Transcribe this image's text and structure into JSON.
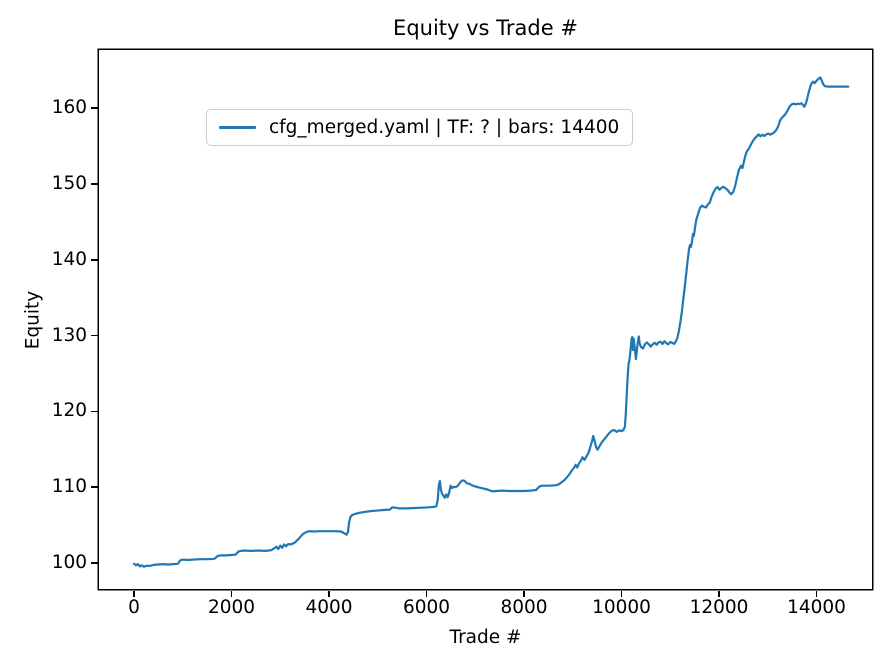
{
  "chart_data": {
    "type": "line",
    "title": "Equity vs Trade #",
    "xlabel": "Trade #",
    "ylabel": "Equity",
    "xlim": [
      -718,
      15138
    ],
    "ylim": [
      96.57,
      167.68
    ],
    "xticks": [
      0,
      2000,
      4000,
      6000,
      8000,
      10000,
      12000,
      14000
    ],
    "yticks": [
      100,
      110,
      120,
      130,
      140,
      150,
      160
    ],
    "grid": false,
    "background_color": "#ffffff",
    "axis_color": "#000000",
    "legend": {
      "position": "upper-left",
      "entries": [
        {
          "label": "cfg_merged.yaml | TF: ? | bars: 14400",
          "color": "#1f77b4"
        }
      ]
    },
    "series": [
      {
        "name": "cfg_merged.yaml | TF: ? | bars: 14400",
        "color": "#1f77b4",
        "points": [
          [
            0,
            99.9
          ],
          [
            40,
            99.7
          ],
          [
            80,
            99.85
          ],
          [
            120,
            99.55
          ],
          [
            160,
            99.7
          ],
          [
            200,
            99.5
          ],
          [
            260,
            99.65
          ],
          [
            320,
            99.6
          ],
          [
            400,
            99.75
          ],
          [
            500,
            99.8
          ],
          [
            600,
            99.85
          ],
          [
            700,
            99.8
          ],
          [
            800,
            99.85
          ],
          [
            900,
            99.9
          ],
          [
            950,
            100.35
          ],
          [
            1020,
            100.45
          ],
          [
            1100,
            100.4
          ],
          [
            1200,
            100.45
          ],
          [
            1350,
            100.5
          ],
          [
            1500,
            100.5
          ],
          [
            1650,
            100.55
          ],
          [
            1720,
            100.95
          ],
          [
            1800,
            101.0
          ],
          [
            1900,
            101.0
          ],
          [
            2000,
            101.05
          ],
          [
            2080,
            101.1
          ],
          [
            2150,
            101.55
          ],
          [
            2250,
            101.65
          ],
          [
            2400,
            101.6
          ],
          [
            2550,
            101.65
          ],
          [
            2700,
            101.6
          ],
          [
            2820,
            101.7
          ],
          [
            2880,
            101.95
          ],
          [
            2920,
            102.15
          ],
          [
            2960,
            101.85
          ],
          [
            3000,
            102.3
          ],
          [
            3040,
            102.0
          ],
          [
            3080,
            102.45
          ],
          [
            3120,
            102.2
          ],
          [
            3160,
            102.5
          ],
          [
            3220,
            102.45
          ],
          [
            3300,
            102.7
          ],
          [
            3380,
            103.2
          ],
          [
            3460,
            103.8
          ],
          [
            3540,
            104.1
          ],
          [
            3600,
            104.2
          ],
          [
            3700,
            104.15
          ],
          [
            3800,
            104.2
          ],
          [
            3950,
            104.2
          ],
          [
            4100,
            104.2
          ],
          [
            4250,
            104.15
          ],
          [
            4330,
            103.85
          ],
          [
            4360,
            103.75
          ],
          [
            4390,
            104.1
          ],
          [
            4410,
            105.3
          ],
          [
            4440,
            106.1
          ],
          [
            4480,
            106.35
          ],
          [
            4550,
            106.5
          ],
          [
            4650,
            106.65
          ],
          [
            4750,
            106.75
          ],
          [
            4850,
            106.85
          ],
          [
            4950,
            106.9
          ],
          [
            5050,
            106.95
          ],
          [
            5150,
            107.0
          ],
          [
            5250,
            107.05
          ],
          [
            5300,
            107.35
          ],
          [
            5360,
            107.3
          ],
          [
            5450,
            107.2
          ],
          [
            5600,
            107.2
          ],
          [
            5750,
            107.25
          ],
          [
            5900,
            107.3
          ],
          [
            6050,
            107.35
          ],
          [
            6150,
            107.4
          ],
          [
            6200,
            107.5
          ],
          [
            6230,
            108.3
          ],
          [
            6255,
            110.3
          ],
          [
            6275,
            110.8
          ],
          [
            6295,
            109.7
          ],
          [
            6315,
            109.2
          ],
          [
            6345,
            108.9
          ],
          [
            6375,
            108.6
          ],
          [
            6405,
            109.05
          ],
          [
            6435,
            108.7
          ],
          [
            6465,
            109.3
          ],
          [
            6495,
            110.2
          ],
          [
            6525,
            109.9
          ],
          [
            6560,
            110.05
          ],
          [
            6600,
            110.0
          ],
          [
            6650,
            110.25
          ],
          [
            6700,
            110.7
          ],
          [
            6740,
            110.9
          ],
          [
            6780,
            110.85
          ],
          [
            6830,
            110.5
          ],
          [
            6880,
            110.45
          ],
          [
            6950,
            110.2
          ],
          [
            7050,
            110.0
          ],
          [
            7150,
            109.85
          ],
          [
            7250,
            109.7
          ],
          [
            7350,
            109.45
          ],
          [
            7450,
            109.5
          ],
          [
            7550,
            109.55
          ],
          [
            7700,
            109.5
          ],
          [
            7850,
            109.5
          ],
          [
            8000,
            109.5
          ],
          [
            8150,
            109.55
          ],
          [
            8250,
            109.65
          ],
          [
            8310,
            110.05
          ],
          [
            8360,
            110.2
          ],
          [
            8500,
            110.2
          ],
          [
            8650,
            110.25
          ],
          [
            8720,
            110.4
          ],
          [
            8780,
            110.7
          ],
          [
            8830,
            110.95
          ],
          [
            8880,
            111.3
          ],
          [
            8930,
            111.7
          ],
          [
            8980,
            112.2
          ],
          [
            9030,
            112.6
          ],
          [
            9060,
            112.95
          ],
          [
            9090,
            112.6
          ],
          [
            9130,
            113.15
          ],
          [
            9170,
            113.55
          ],
          [
            9200,
            113.95
          ],
          [
            9240,
            113.6
          ],
          [
            9280,
            114.05
          ],
          [
            9320,
            114.5
          ],
          [
            9360,
            115.3
          ],
          [
            9400,
            116.2
          ],
          [
            9420,
            116.75
          ],
          [
            9450,
            116.05
          ],
          [
            9480,
            115.25
          ],
          [
            9510,
            114.95
          ],
          [
            9550,
            115.45
          ],
          [
            9600,
            115.95
          ],
          [
            9650,
            116.35
          ],
          [
            9700,
            116.75
          ],
          [
            9750,
            117.15
          ],
          [
            9800,
            117.45
          ],
          [
            9850,
            117.55
          ],
          [
            9900,
            117.3
          ],
          [
            9950,
            117.5
          ],
          [
            10000,
            117.4
          ],
          [
            10040,
            117.55
          ],
          [
            10070,
            118.0
          ],
          [
            10085,
            119.5
          ],
          [
            10100,
            121.3
          ],
          [
            10115,
            123.2
          ],
          [
            10130,
            125.0
          ],
          [
            10145,
            126.3
          ],
          [
            10160,
            126.7
          ],
          [
            10175,
            127.4
          ],
          [
            10190,
            128.4
          ],
          [
            10205,
            129.5
          ],
          [
            10220,
            129.8
          ],
          [
            10235,
            128.1
          ],
          [
            10250,
            129.6
          ],
          [
            10265,
            128.8
          ],
          [
            10280,
            127.9
          ],
          [
            10295,
            126.9
          ],
          [
            10310,
            127.7
          ],
          [
            10325,
            128.7
          ],
          [
            10340,
            129.4
          ],
          [
            10355,
            129.9
          ],
          [
            10370,
            129.0
          ],
          [
            10400,
            128.5
          ],
          [
            10440,
            128.3
          ],
          [
            10480,
            128.85
          ],
          [
            10520,
            129.1
          ],
          [
            10560,
            128.85
          ],
          [
            10600,
            128.55
          ],
          [
            10640,
            128.85
          ],
          [
            10680,
            129.05
          ],
          [
            10720,
            128.8
          ],
          [
            10760,
            129.1
          ],
          [
            10800,
            129.2
          ],
          [
            10840,
            128.9
          ],
          [
            10880,
            129.25
          ],
          [
            10920,
            129.0
          ],
          [
            10960,
            128.85
          ],
          [
            11000,
            129.15
          ],
          [
            11040,
            129.05
          ],
          [
            11080,
            128.9
          ],
          [
            11120,
            129.3
          ],
          [
            11150,
            129.8
          ],
          [
            11180,
            130.7
          ],
          [
            11210,
            131.9
          ],
          [
            11240,
            133.3
          ],
          [
            11270,
            134.9
          ],
          [
            11300,
            136.6
          ],
          [
            11330,
            138.4
          ],
          [
            11360,
            140.1
          ],
          [
            11385,
            141.4
          ],
          [
            11405,
            141.95
          ],
          [
            11425,
            141.7
          ],
          [
            11445,
            142.4
          ],
          [
            11465,
            143.4
          ],
          [
            11485,
            143.15
          ],
          [
            11510,
            144.3
          ],
          [
            11535,
            145.3
          ],
          [
            11560,
            145.85
          ],
          [
            11585,
            146.35
          ],
          [
            11615,
            146.9
          ],
          [
            11650,
            147.15
          ],
          [
            11690,
            147.0
          ],
          [
            11730,
            146.9
          ],
          [
            11770,
            147.3
          ],
          [
            11810,
            147.55
          ],
          [
            11850,
            148.35
          ],
          [
            11890,
            148.95
          ],
          [
            11930,
            149.4
          ],
          [
            11970,
            149.6
          ],
          [
            12010,
            149.25
          ],
          [
            12050,
            149.5
          ],
          [
            12090,
            149.65
          ],
          [
            12130,
            149.45
          ],
          [
            12170,
            149.25
          ],
          [
            12210,
            148.9
          ],
          [
            12250,
            148.65
          ],
          [
            12290,
            148.95
          ],
          [
            12330,
            149.7
          ],
          [
            12370,
            150.9
          ],
          [
            12410,
            151.9
          ],
          [
            12450,
            152.4
          ],
          [
            12480,
            152.1
          ],
          [
            12510,
            152.95
          ],
          [
            12540,
            153.7
          ],
          [
            12570,
            154.3
          ],
          [
            12610,
            154.65
          ],
          [
            12650,
            155.15
          ],
          [
            12690,
            155.65
          ],
          [
            12730,
            156.0
          ],
          [
            12770,
            156.25
          ],
          [
            12810,
            156.55
          ],
          [
            12850,
            156.3
          ],
          [
            12890,
            156.5
          ],
          [
            12930,
            156.35
          ],
          [
            12970,
            156.55
          ],
          [
            13010,
            156.65
          ],
          [
            13050,
            156.5
          ],
          [
            13090,
            156.65
          ],
          [
            13130,
            156.8
          ],
          [
            13170,
            157.1
          ],
          [
            13210,
            157.55
          ],
          [
            13250,
            158.35
          ],
          [
            13290,
            158.75
          ],
          [
            13330,
            159.0
          ],
          [
            13370,
            159.3
          ],
          [
            13410,
            159.75
          ],
          [
            13450,
            160.25
          ],
          [
            13490,
            160.5
          ],
          [
            13530,
            160.6
          ],
          [
            13570,
            160.5
          ],
          [
            13610,
            160.6
          ],
          [
            13650,
            160.55
          ],
          [
            13690,
            160.65
          ],
          [
            13720,
            160.45
          ],
          [
            13750,
            160.2
          ],
          [
            13780,
            160.6
          ],
          [
            13810,
            161.3
          ],
          [
            13840,
            162.1
          ],
          [
            13870,
            162.8
          ],
          [
            13900,
            163.3
          ],
          [
            13930,
            163.5
          ],
          [
            13960,
            163.3
          ],
          [
            13990,
            163.55
          ],
          [
            14020,
            163.75
          ],
          [
            14050,
            163.95
          ],
          [
            14080,
            164.05
          ],
          [
            14110,
            163.6
          ],
          [
            14140,
            163.15
          ],
          [
            14170,
            162.9
          ],
          [
            14250,
            162.85
          ],
          [
            14400,
            162.85
          ],
          [
            14650,
            162.85
          ]
        ]
      }
    ]
  }
}
